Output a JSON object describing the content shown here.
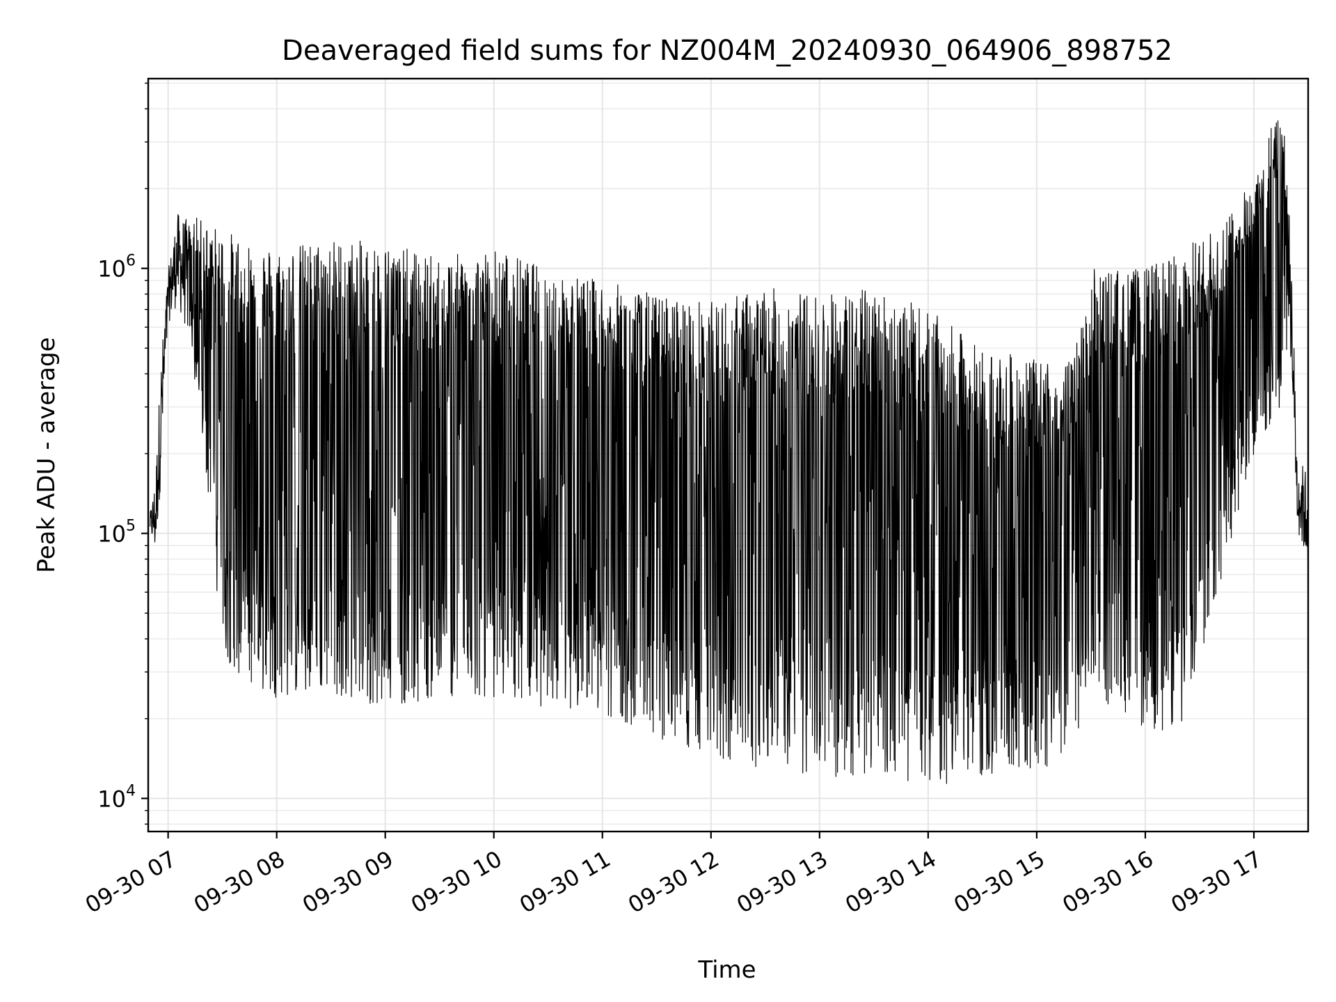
{
  "chart_data": {
    "type": "line",
    "title": "Deaveraged field sums for NZ004M_20240930_064906_898752",
    "xlabel": "Time",
    "ylabel": "Peak ADU - average",
    "yscale": "log",
    "ylim": [
      7500,
      5200000
    ],
    "xlim": [
      "2024-09-30 06:49:00",
      "2024-09-30 17:30:00"
    ],
    "grid": true,
    "x_tick_labels": [
      "09-30 07",
      "09-30 08",
      "09-30 09",
      "09-30 10",
      "09-30 11",
      "09-30 12",
      "09-30 13",
      "09-30 14",
      "09-30 15",
      "09-30 16",
      "09-30 17"
    ],
    "y_tick_labels": [
      {
        "value": 10000,
        "base": "10",
        "exp": "4"
      },
      {
        "value": 100000,
        "base": "10",
        "exp": "5"
      },
      {
        "value": 1000000,
        "base": "10",
        "exp": "6"
      }
    ],
    "series": [
      {
        "color": "#000000",
        "note_envelope": "rapidly oscillating signal; values below sampled as (time, low, high) envelope",
        "envelope": [
          {
            "x": "2024-09-30 06:50",
            "low": 100000,
            "high": 120000
          },
          {
            "x": "2024-09-30 06:53",
            "low": 78000,
            "high": 170000
          },
          {
            "x": "2024-09-30 06:56",
            "low": 150000,
            "high": 480000
          },
          {
            "x": "2024-09-30 07:00",
            "low": 600000,
            "high": 1000000
          },
          {
            "x": "2024-09-30 07:05",
            "low": 700000,
            "high": 1700000
          },
          {
            "x": "2024-09-30 07:12",
            "low": 500000,
            "high": 1600000
          },
          {
            "x": "2024-09-30 07:20",
            "low": 200000,
            "high": 1500000
          },
          {
            "x": "2024-09-30 07:30",
            "low": 35000,
            "high": 1400000
          },
          {
            "x": "2024-09-30 07:45",
            "low": 26000,
            "high": 1300000
          },
          {
            "x": "2024-09-30 08:00",
            "low": 24000,
            "high": 1200000
          },
          {
            "x": "2024-09-30 08:30",
            "low": 25000,
            "high": 1300000
          },
          {
            "x": "2024-09-30 09:00",
            "low": 22000,
            "high": 1250000
          },
          {
            "x": "2024-09-30 09:30",
            "low": 24000,
            "high": 1100000
          },
          {
            "x": "2024-09-30 10:00",
            "low": 24000,
            "high": 1200000
          },
          {
            "x": "2024-09-30 10:30",
            "low": 22000,
            "high": 1000000
          },
          {
            "x": "2024-09-30 11:00",
            "low": 21000,
            "high": 900000
          },
          {
            "x": "2024-09-30 11:30",
            "low": 17000,
            "high": 800000
          },
          {
            "x": "2024-09-30 12:00",
            "low": 14000,
            "high": 750000
          },
          {
            "x": "2024-09-30 12:30",
            "low": 13000,
            "high": 850000
          },
          {
            "x": "2024-09-30 13:00",
            "low": 12000,
            "high": 800000
          },
          {
            "x": "2024-09-30 13:30",
            "low": 12000,
            "high": 850000
          },
          {
            "x": "2024-09-30 14:00",
            "low": 11000,
            "high": 700000
          },
          {
            "x": "2024-09-30 14:30",
            "low": 12000,
            "high": 500000
          },
          {
            "x": "2024-09-30 15:00",
            "low": 12000,
            "high": 450000
          },
          {
            "x": "2024-09-30 15:20",
            "low": 15000,
            "high": 450000
          },
          {
            "x": "2024-09-30 15:30",
            "low": 25000,
            "high": 1000000
          },
          {
            "x": "2024-09-30 16:00",
            "low": 18000,
            "high": 1000000
          },
          {
            "x": "2024-09-30 16:20",
            "low": 18000,
            "high": 1200000
          },
          {
            "x": "2024-09-30 16:40",
            "low": 60000,
            "high": 1400000
          },
          {
            "x": "2024-09-30 17:00",
            "low": 200000,
            "high": 2200000
          },
          {
            "x": "2024-09-30 17:15",
            "low": 300000,
            "high": 4500000
          },
          {
            "x": "2024-09-30 17:20",
            "low": 500000,
            "high": 1800000
          },
          {
            "x": "2024-09-30 17:24",
            "low": 100000,
            "high": 200000
          },
          {
            "x": "2024-09-30 17:30",
            "low": 70000,
            "high": 180000
          }
        ]
      }
    ]
  }
}
